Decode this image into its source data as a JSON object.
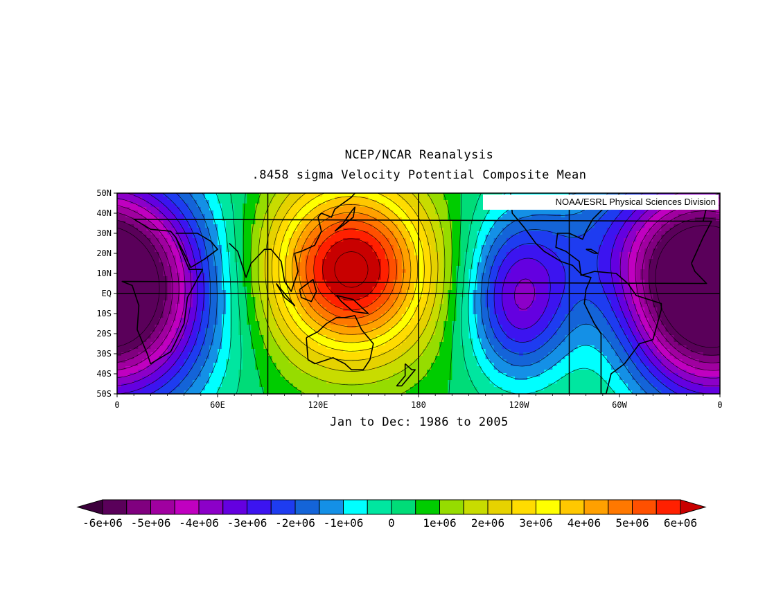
{
  "title": {
    "line1": "NCEP/NCAR Reanalysis",
    "line2": ".8458 sigma Velocity Potential  Composite Mean"
  },
  "credit": "NOAA/ESRL Physical Sciences Division",
  "footer": "Jan to Dec: 1986 to 2005",
  "map": {
    "lat_labels": [
      "50N",
      "40N",
      "30N",
      "20N",
      "10N",
      "EQ",
      "10S",
      "20S",
      "30S",
      "40S",
      "50S"
    ],
    "lon_labels": [
      "0",
      "60E",
      "120E",
      "180",
      "120W",
      "60W",
      "0"
    ],
    "lat_range": [
      -50,
      50
    ],
    "lon_range": [
      0,
      360
    ],
    "gridlines_lon": [
      90,
      180,
      270
    ],
    "gridlines_lat": [
      0
    ],
    "features": {
      "max_center": {
        "lon": 140,
        "lat": 12,
        "value": 6000000
      },
      "min_center_east_africa": {
        "lon": 20,
        "lat": 0,
        "value": -4500000
      },
      "min_center_atlantic": {
        "lon": 340,
        "lat": 0,
        "value": -5000000
      },
      "min_center_east_pacific": {
        "lon": 240,
        "lat": -5,
        "value": -3500000
      }
    }
  },
  "colorbar": {
    "labels": [
      "-6e+06",
      "-5e+06",
      "-4e+06",
      "-3e+06",
      "-2e+06",
      "-1e+06",
      "0",
      "1e+06",
      "2e+06",
      "3e+06",
      "4e+06",
      "5e+06",
      "6e+06"
    ],
    "colors": [
      "#5a005a",
      "#80007f",
      "#a000a0",
      "#c000c0",
      "#8c00c8",
      "#6400e0",
      "#3c14f0",
      "#1e3cf0",
      "#1464d8",
      "#1490e6",
      "#00ffff",
      "#00e6a0",
      "#00dc78",
      "#00cc00",
      "#96dc00",
      "#c8dc00",
      "#e6d200",
      "#ffdc00",
      "#ffff00",
      "#ffc800",
      "#ffa000",
      "#ff7800",
      "#ff5000",
      "#ff2000",
      "#c80000"
    ],
    "arrow_left_color": "#3c003c",
    "arrow_right_color": "#c80000"
  }
}
